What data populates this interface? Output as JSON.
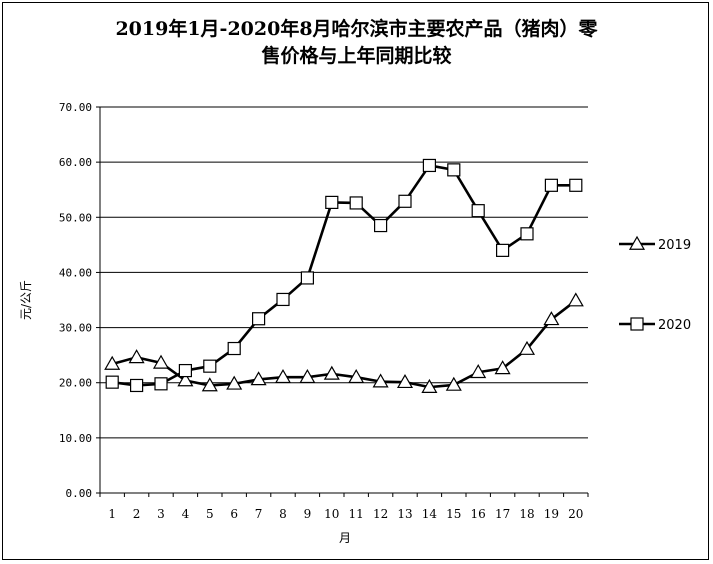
{
  "chart_data": {
    "type": "line",
    "title": "2019年1月-2020年8月哈尔滨市主要农产品（猪肉）零售价格与上年同期比较",
    "title_lines": [
      "2019年1月-2020年8月哈尔滨市主要农产品（猪肉）零",
      "售价格与上年同期比较"
    ],
    "xlabel": "月",
    "ylabel": "元/公斤",
    "categories": [
      "1",
      "2",
      "3",
      "4",
      "5",
      "6",
      "7",
      "8",
      "9",
      "10",
      "11",
      "12",
      "13",
      "14",
      "15",
      "16",
      "17",
      "18",
      "19",
      "20"
    ],
    "ylim": [
      0,
      70
    ],
    "yticks": [
      "0.00",
      "10.00",
      "20.00",
      "30.00",
      "40.00",
      "50.00",
      "60.00",
      "70.00"
    ],
    "grid": true,
    "legend_position": "right",
    "series": [
      {
        "name": "2019",
        "marker": "triangle",
        "color": "#000000",
        "values": [
          23.4,
          24.6,
          23.6,
          20.4,
          19.5,
          19.8,
          20.6,
          21.0,
          21.0,
          21.6,
          21.0,
          20.2,
          20.1,
          19.2,
          19.6,
          21.9,
          22.6,
          26.1,
          31.5,
          34.9
        ]
      },
      {
        "name": "2020",
        "marker": "square",
        "color": "#000000",
        "values": [
          20.1,
          19.5,
          19.8,
          22.2,
          23.0,
          26.2,
          31.6,
          35.1,
          39.0,
          52.7,
          52.6,
          48.5,
          52.9,
          59.4,
          58.6,
          51.2,
          44.0,
          47.0,
          55.8,
          55.8
        ]
      }
    ]
  }
}
